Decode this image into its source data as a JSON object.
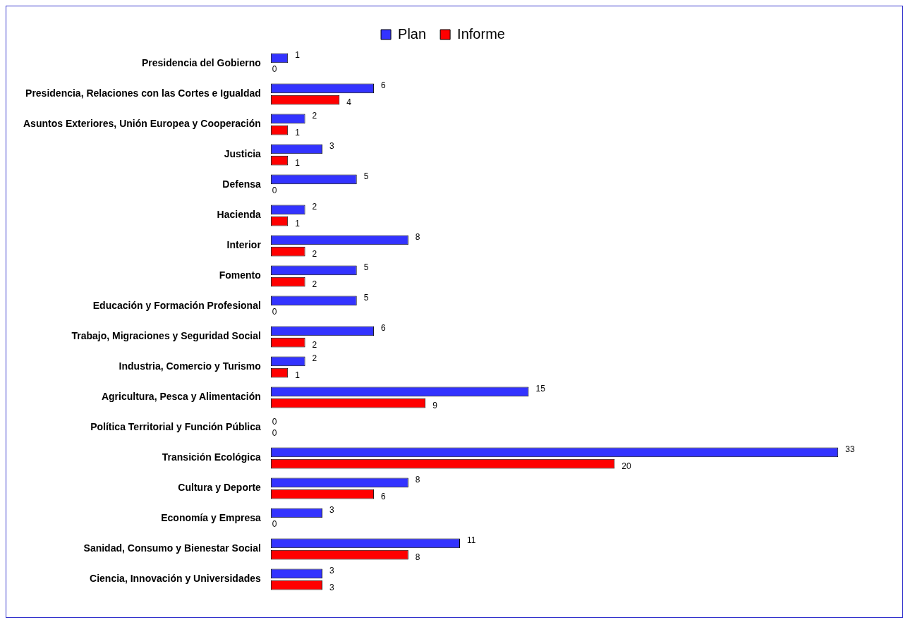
{
  "chart_data": {
    "type": "bar",
    "orientation": "horizontal",
    "categories": [
      "Presidencia del Gobierno",
      "Presidencia, Relaciones con las Cortes e Igualdad",
      "Asuntos Exteriores, Unión Europea y Cooperación",
      "Justicia",
      "Defensa",
      "Hacienda",
      "Interior",
      "Fomento",
      "Educación y Formación Profesional",
      "Trabajo, Migraciones y Seguridad Social",
      "Industria, Comercio y Turismo",
      "Agricultura, Pesca y Alimentación",
      "Política Territorial y Función Pública",
      "Transición Ecológica",
      "Cultura y Deporte",
      "Economía y Empresa",
      "Sanidad, Consumo y Bienestar Social",
      "Ciencia, Innovación y Universidades"
    ],
    "series": [
      {
        "name": "Plan",
        "color": "#3333ff",
        "values": [
          1,
          6,
          2,
          3,
          5,
          2,
          8,
          5,
          5,
          6,
          2,
          15,
          0,
          33,
          8,
          3,
          11,
          3
        ]
      },
      {
        "name": "Informe",
        "color": "#ff0000",
        "values": [
          0,
          4,
          1,
          1,
          0,
          1,
          2,
          2,
          0,
          2,
          1,
          9,
          0,
          20,
          6,
          0,
          8,
          3
        ]
      }
    ],
    "data_labels": true,
    "legend": "top",
    "grid": false
  }
}
